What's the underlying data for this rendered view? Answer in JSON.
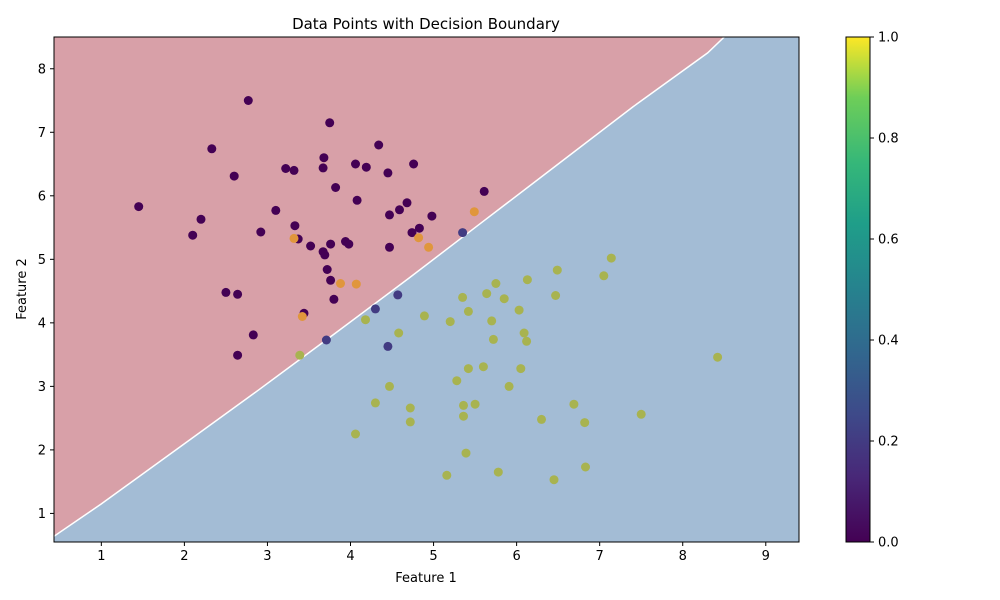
{
  "chart_data": {
    "type": "scatter",
    "title": "Data Points with Decision Boundary",
    "xlabel": "Feature 1",
    "ylabel": "Feature 2",
    "xlim": [
      0.43,
      9.4
    ],
    "ylim": [
      0.55,
      8.5
    ],
    "xticks": [
      "1",
      "2",
      "3",
      "4",
      "5",
      "6",
      "7",
      "8",
      "9"
    ],
    "yticks": [
      "1",
      "2",
      "3",
      "4",
      "5",
      "6",
      "7",
      "8"
    ],
    "grid": false,
    "boundary": {
      "line": [
        [
          0.43,
          0.64
        ],
        [
          1.0,
          1.15
        ],
        [
          1.95,
          2.05
        ],
        [
          2.9,
          2.95
        ],
        [
          3.8,
          3.82
        ],
        [
          4.7,
          4.7
        ],
        [
          5.6,
          5.6
        ],
        [
          6.45,
          6.45
        ],
        [
          7.4,
          7.4
        ],
        [
          8.3,
          8.25
        ],
        [
          8.5,
          8.5
        ]
      ],
      "upper_region_color": "#d8a0a8",
      "lower_region_color": "#a3bcd5"
    },
    "colorbar": {
      "min": 0.0,
      "max": 1.0,
      "ticks": [
        "0.0",
        "0.2",
        "0.4",
        "0.6",
        "0.8",
        "1.0"
      ],
      "colormap": "viridis"
    },
    "points": [
      [
        1.45,
        5.83,
        0.0
      ],
      [
        2.1,
        5.38,
        0.0
      ],
      [
        2.2,
        5.63,
        0.0
      ],
      [
        2.33,
        6.74,
        0.0
      ],
      [
        2.6,
        6.31,
        0.0
      ],
      [
        2.77,
        7.5,
        0.0
      ],
      [
        2.5,
        4.48,
        0.0
      ],
      [
        2.64,
        4.45,
        0.0
      ],
      [
        2.83,
        3.81,
        0.0
      ],
      [
        2.64,
        3.49,
        0.0
      ],
      [
        2.92,
        5.43,
        0.0
      ],
      [
        3.1,
        5.77,
        0.0
      ],
      [
        3.22,
        6.43,
        0.0
      ],
      [
        3.32,
        6.4,
        0.0
      ],
      [
        3.33,
        5.53,
        0.0
      ],
      [
        3.37,
        5.32,
        0.0
      ],
      [
        3.52,
        5.21,
        0.0
      ],
      [
        3.67,
        5.12,
        0.0
      ],
      [
        3.69,
        5.07,
        0.0
      ],
      [
        3.67,
        6.44,
        0.0
      ],
      [
        3.68,
        6.6,
        0.0
      ],
      [
        3.75,
        7.15,
        0.0
      ],
      [
        3.76,
        5.24,
        0.0
      ],
      [
        3.82,
        6.13,
        0.0
      ],
      [
        3.72,
        4.84,
        0.0
      ],
      [
        3.76,
        4.67,
        0.0
      ],
      [
        3.8,
        4.37,
        0.0
      ],
      [
        3.44,
        4.15,
        0.0
      ],
      [
        3.94,
        5.28,
        0.0
      ],
      [
        3.98,
        5.24,
        0.0
      ],
      [
        4.06,
        6.5,
        0.0
      ],
      [
        4.08,
        5.93,
        0.0
      ],
      [
        4.19,
        6.45,
        0.0
      ],
      [
        4.34,
        6.8,
        0.0
      ],
      [
        4.45,
        6.36,
        0.0
      ],
      [
        4.47,
        5.7,
        0.0
      ],
      [
        4.47,
        5.19,
        0.0
      ],
      [
        4.59,
        5.78,
        0.0
      ],
      [
        4.68,
        5.89,
        0.0
      ],
      [
        4.76,
        6.5,
        0.0
      ],
      [
        4.74,
        5.42,
        0.0
      ],
      [
        4.83,
        5.49,
        0.0
      ],
      [
        4.98,
        5.68,
        0.0
      ],
      [
        5.61,
        6.07,
        0.0
      ],
      [
        3.71,
        3.73,
        0.2
      ],
      [
        4.3,
        4.22,
        0.2
      ],
      [
        4.45,
        3.63,
        0.2
      ],
      [
        4.57,
        4.44,
        0.2
      ],
      [
        5.35,
        5.42,
        0.2
      ],
      [
        3.32,
        5.33,
        0.75
      ],
      [
        3.42,
        4.1,
        0.75
      ],
      [
        3.88,
        4.62,
        0.75
      ],
      [
        4.07,
        4.61,
        0.75
      ],
      [
        4.82,
        5.34,
        0.75
      ],
      [
        4.94,
        5.19,
        0.75
      ],
      [
        5.49,
        5.75,
        0.75
      ],
      [
        3.39,
        3.49,
        0.9
      ],
      [
        4.18,
        4.05,
        0.9
      ],
      [
        4.3,
        2.74,
        0.9
      ],
      [
        4.47,
        3.0,
        0.9
      ],
      [
        4.06,
        2.25,
        0.9
      ],
      [
        4.58,
        3.84,
        0.9
      ],
      [
        4.72,
        2.66,
        0.9
      ],
      [
        4.72,
        2.44,
        0.9
      ],
      [
        4.89,
        4.11,
        0.9
      ],
      [
        5.16,
        1.6,
        0.9
      ],
      [
        5.2,
        4.02,
        0.9
      ],
      [
        5.28,
        3.09,
        0.9
      ],
      [
        5.35,
        4.4,
        0.9
      ],
      [
        5.36,
        2.7,
        0.9
      ],
      [
        5.36,
        2.53,
        0.9
      ],
      [
        5.39,
        1.95,
        0.9
      ],
      [
        5.42,
        3.28,
        0.9
      ],
      [
        5.42,
        4.18,
        0.9
      ],
      [
        5.5,
        2.72,
        0.9
      ],
      [
        5.6,
        3.31,
        0.9
      ],
      [
        5.64,
        4.46,
        0.9
      ],
      [
        5.7,
        4.03,
        0.9
      ],
      [
        5.72,
        3.74,
        0.9
      ],
      [
        5.75,
        4.62,
        0.9
      ],
      [
        5.78,
        1.65,
        0.9
      ],
      [
        5.85,
        4.38,
        0.9
      ],
      [
        5.91,
        3.0,
        0.9
      ],
      [
        6.03,
        4.2,
        0.9
      ],
      [
        6.05,
        3.28,
        0.9
      ],
      [
        6.09,
        3.84,
        0.9
      ],
      [
        6.12,
        3.71,
        0.9
      ],
      [
        6.13,
        4.68,
        0.9
      ],
      [
        6.3,
        2.48,
        0.9
      ],
      [
        6.45,
        1.53,
        0.9
      ],
      [
        6.47,
        4.43,
        0.9
      ],
      [
        6.49,
        4.83,
        0.9
      ],
      [
        6.69,
        2.72,
        0.9
      ],
      [
        6.82,
        2.43,
        0.9
      ],
      [
        6.83,
        1.73,
        0.9
      ],
      [
        7.05,
        4.74,
        0.9
      ],
      [
        7.14,
        5.02,
        0.9
      ],
      [
        7.5,
        2.56,
        0.9
      ],
      [
        8.42,
        3.46,
        0.9
      ]
    ]
  }
}
